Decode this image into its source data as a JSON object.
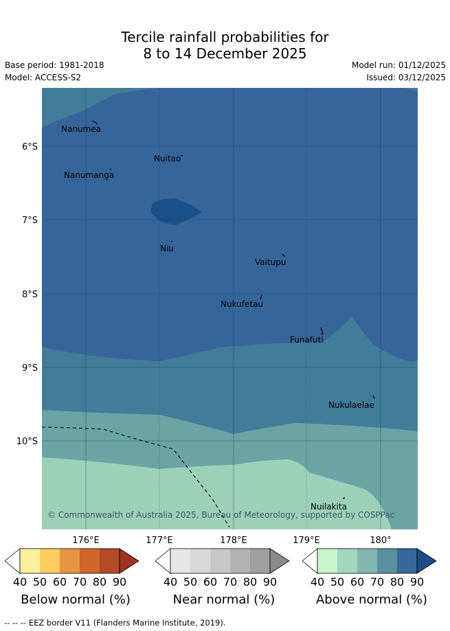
{
  "title": {
    "line1": "Tercile rainfall probabilities for",
    "line2": "8 to 14 December 2025"
  },
  "meta": {
    "base_period": "Base period: 1981-2018",
    "model": "Model: ACCESS-S2",
    "model_run": "Model run: 01/12/2025",
    "issued": "Issued: 03/12/2025"
  },
  "map": {
    "lat_ticks": [
      "6°S",
      "7°S",
      "8°S",
      "9°S",
      "10°S"
    ],
    "lon_ticks": [
      "176°E",
      "177°E",
      "178°E",
      "179°E",
      "180°"
    ],
    "places": [
      {
        "name": "Nanumea"
      },
      {
        "name": "Nuitao"
      },
      {
        "name": "Nanumanga"
      },
      {
        "name": "Niu"
      },
      {
        "name": "Vaitupu"
      },
      {
        "name": "Nukufetau"
      },
      {
        "name": "Funafuti"
      },
      {
        "name": "Nukulaelae"
      },
      {
        "name": "Nuilakita"
      }
    ],
    "copyright": "© Commonwealth of Australia 2025, Bureau of Meteorology, supported by COSPPac"
  },
  "colorbars": [
    {
      "title": "Below normal (%)",
      "ticks": [
        "40",
        "50",
        "60",
        "70",
        "80",
        "90"
      ],
      "colors": [
        "#ffffff",
        "#fff0a0",
        "#ffcc60",
        "#e69545",
        "#d0652e",
        "#b24a28",
        "#9a3320"
      ]
    },
    {
      "title": "Near normal (%)",
      "ticks": [
        "40",
        "50",
        "60",
        "70",
        "80",
        "90"
      ],
      "colors": [
        "#ffffff",
        "#e6e6e6",
        "#d9d9d9",
        "#c8c8c8",
        "#b3b3b3",
        "#a0a0a0",
        "#8a8a8a"
      ]
    },
    {
      "title": "Above normal (%)",
      "ticks": [
        "40",
        "50",
        "60",
        "70",
        "80",
        "90"
      ],
      "colors": [
        "#ffffff",
        "#c8f5cc",
        "#a4d8be",
        "#84b6b0",
        "#5a8fa0",
        "#36689a",
        "#1c4e86"
      ]
    }
  ],
  "footer": "--  --  -- EEZ border V11 (Flanders Marine Institute, 2019)."
}
